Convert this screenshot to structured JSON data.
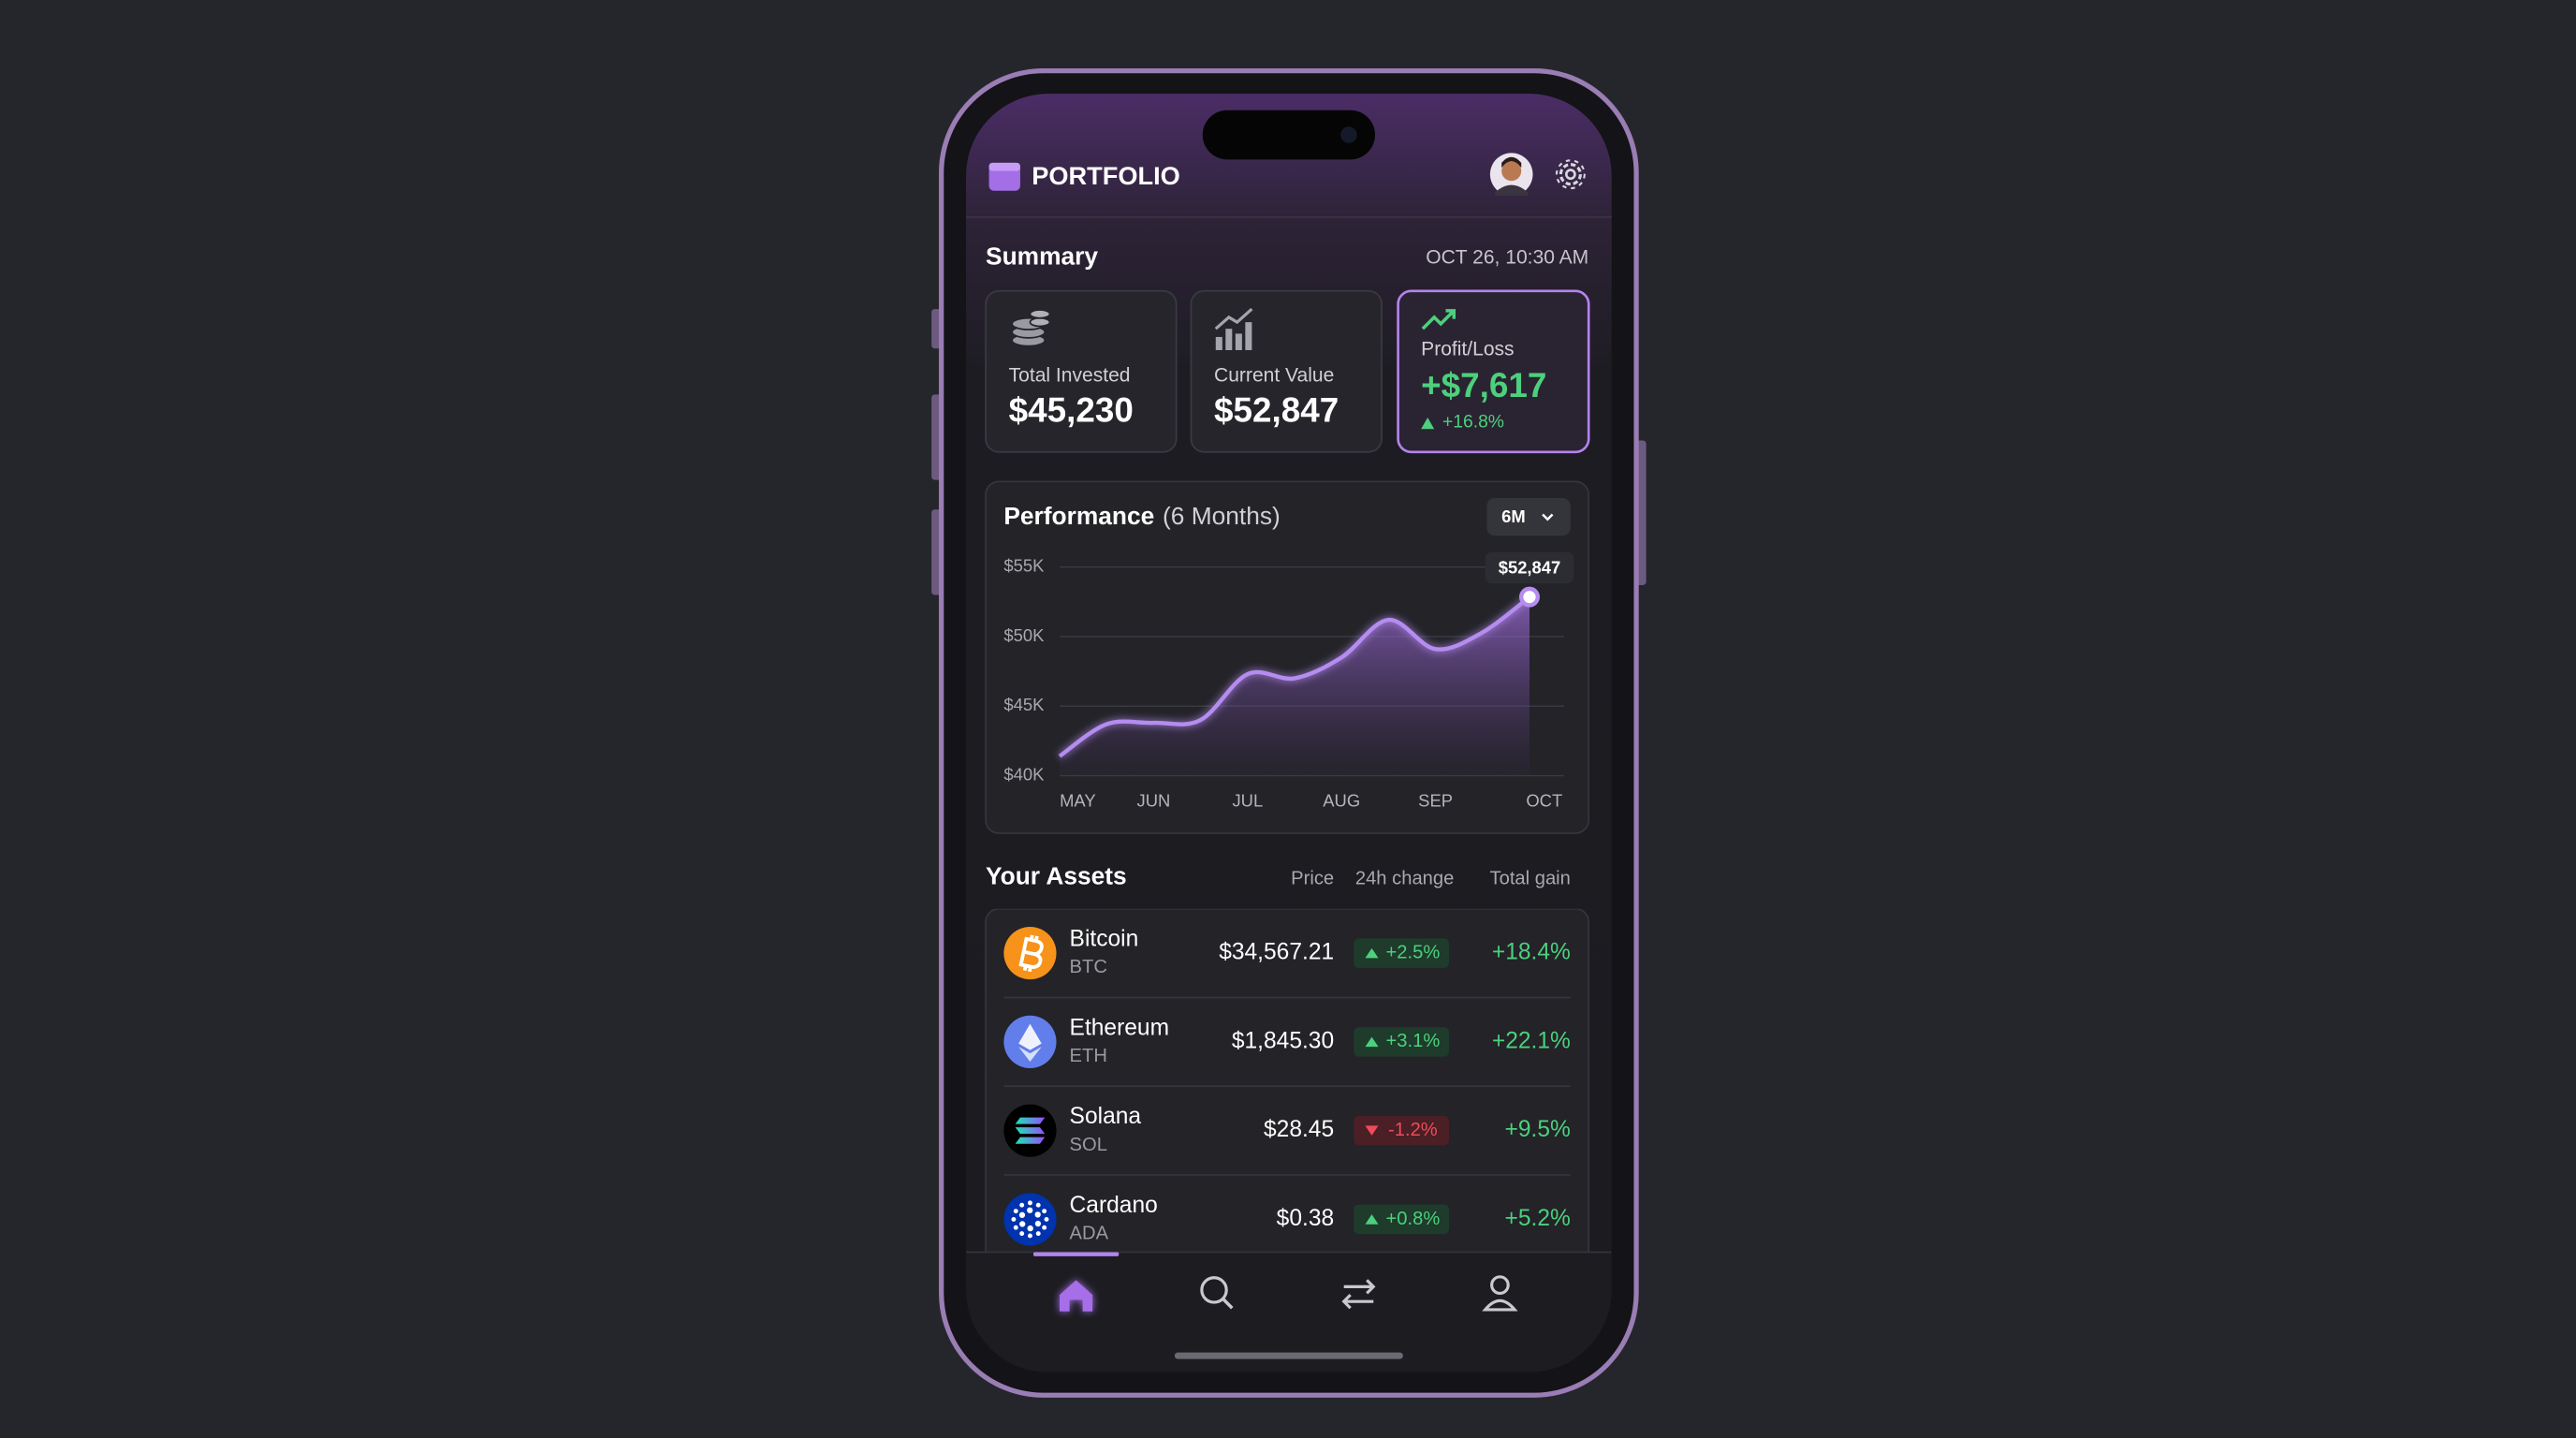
{
  "header": {
    "title": "PORTFOLIO"
  },
  "summary": {
    "title": "Summary",
    "timestamp": "OCT 26, 10:30 AM",
    "cards": [
      {
        "label": "Total Invested",
        "value": "$45,230"
      },
      {
        "label": "Current Value",
        "value": "$52,847"
      },
      {
        "label": "Profit/Loss",
        "value": "+$7,617",
        "change": "+16.8%"
      }
    ]
  },
  "chart_data": {
    "type": "line",
    "title": "Performance",
    "subtitle": "(6 Months)",
    "range": "6M",
    "categories": [
      "MAY",
      null,
      "JUN",
      null,
      "JUL",
      null,
      "AUG",
      null,
      "SEP",
      null,
      "OCT"
    ],
    "values": [
      41400,
      43700,
      43800,
      44000,
      47300,
      47000,
      48500,
      51200,
      49100,
      50300,
      52847
    ],
    "annotation": "$52,847",
    "color": "#b58cf0",
    "ylim": [
      40000,
      55000
    ],
    "yticks": [
      {
        "value": 40000,
        "label": "$40K"
      },
      {
        "value": 45000,
        "label": "$45K"
      },
      {
        "value": 50000,
        "label": "$50K"
      },
      {
        "value": 55000,
        "label": "$55K"
      }
    ],
    "grid": true
  },
  "assets": {
    "title": "Your Assets",
    "columns": [
      "Price",
      "24h change",
      "Total gain"
    ],
    "rows": [
      {
        "name": "Bitcoin",
        "symbol": "BTC",
        "price": "$34,567.21",
        "change": "+2.5%",
        "gain": "+18.4%"
      },
      {
        "name": "Ethereum",
        "symbol": "ETH",
        "price": "$1,845.30",
        "change": "+3.1%",
        "gain": "+22.1%"
      },
      {
        "name": "Solana",
        "symbol": "SOL",
        "price": "$28.45",
        "change": "-1.2%",
        "gain": "+9.5%"
      },
      {
        "name": "Cardano",
        "symbol": "ADA",
        "price": "$0.38",
        "change": "+0.8%",
        "gain": "+5.2%"
      }
    ]
  }
}
